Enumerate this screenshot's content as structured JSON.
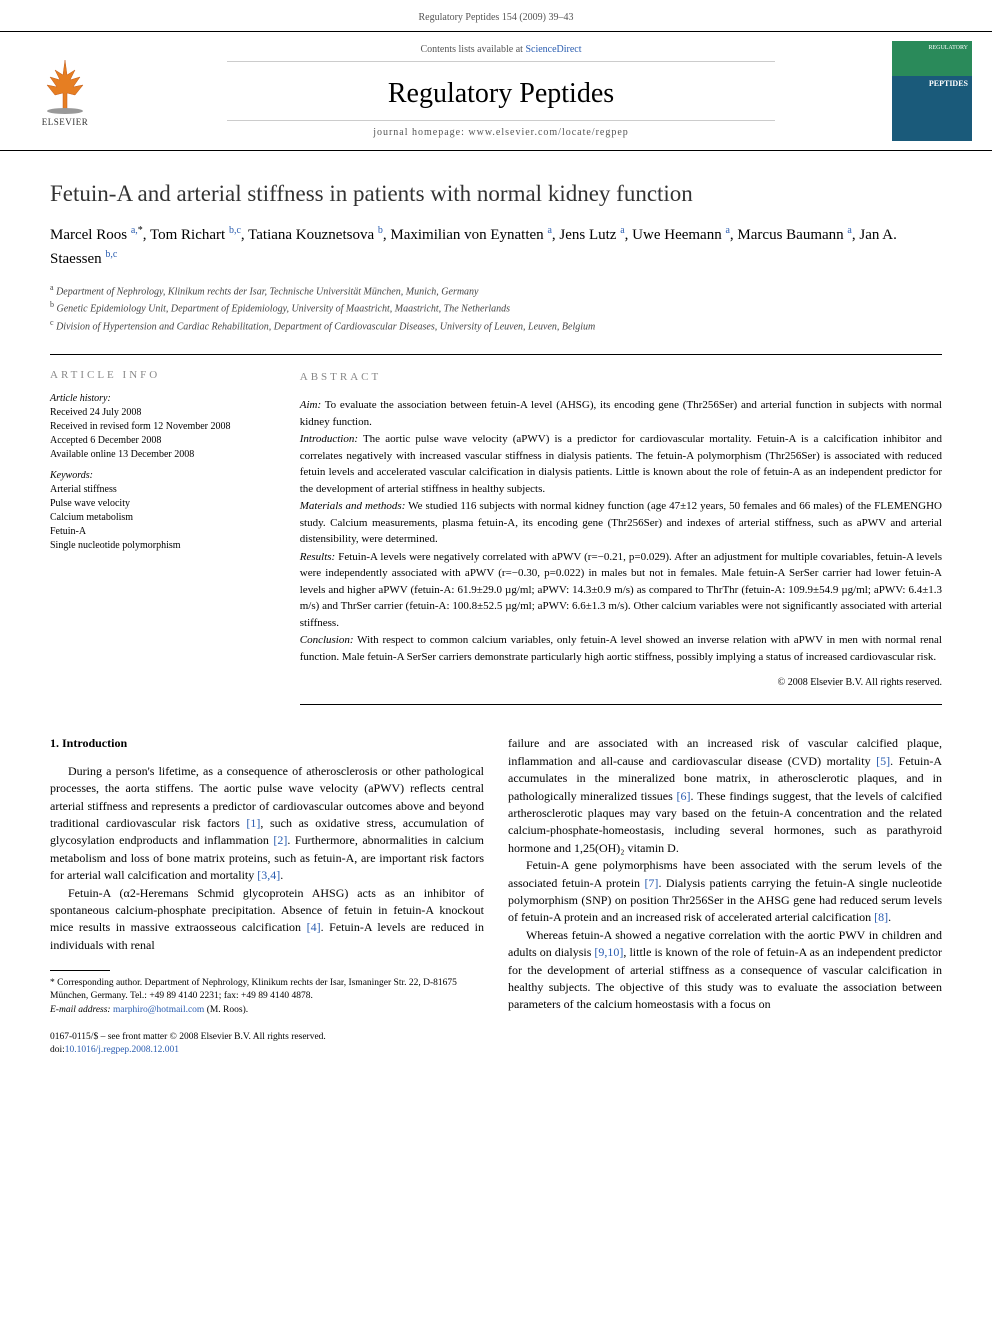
{
  "header": {
    "running": "Regulatory Peptides 154 (2009) 39–43"
  },
  "banner": {
    "contents_prefix": "Contents lists available at ",
    "contents_link": "ScienceDirect",
    "journal_name": "Regulatory Peptides",
    "homepage": "journal homepage: www.elsevier.com/locate/regpep",
    "publisher": "ELSEVIER",
    "cover_label": "REGULATORY",
    "cover_title": "PEPTIDES"
  },
  "article": {
    "title": "Fetuin-A and arterial stiffness in patients with normal kidney function",
    "authors_html": "Marcel Roos <sup class='sup'>a,</sup><sup class='sup star'>*</sup>, Tom Richart <sup class='sup'>b,c</sup>, Tatiana Kouznetsova <sup class='sup'>b</sup>, Maximilian von Eynatten <sup class='sup'>a</sup>, Jens Lutz <sup class='sup'>a</sup>, Uwe Heemann <sup class='sup'>a</sup>, Marcus Baumann <sup class='sup'>a</sup>, Jan A. Staessen <sup class='sup'>b,c</sup>",
    "affiliations": [
      {
        "sup": "a",
        "text": "Department of Nephrology, Klinikum rechts der Isar, Technische Universität München, Munich, Germany"
      },
      {
        "sup": "b",
        "text": "Genetic Epidemiology Unit, Department of Epidemiology, University of Maastricht, Maastricht, The Netherlands"
      },
      {
        "sup": "c",
        "text": "Division of Hypertension and Cardiac Rehabilitation, Department of Cardiovascular Diseases, University of Leuven, Leuven, Belgium"
      }
    ]
  },
  "info": {
    "heading": "article info",
    "history_label": "Article history:",
    "history": [
      "Received 24 July 2008",
      "Received in revised form 12 November 2008",
      "Accepted 6 December 2008",
      "Available online 13 December 2008"
    ],
    "keywords_label": "Keywords:",
    "keywords": [
      "Arterial stiffness",
      "Pulse wave velocity",
      "Calcium metabolism",
      "Fetuin-A",
      "Single nucleotide polymorphism"
    ]
  },
  "abstract": {
    "heading": "abstract",
    "sections": [
      {
        "label": "Aim:",
        "text": " To evaluate the association between fetuin-A level (AHSG), its encoding gene (Thr256Ser) and arterial function in subjects with normal kidney function."
      },
      {
        "label": "Introduction:",
        "text": " The aortic pulse wave velocity (aPWV) is a predictor for cardiovascular mortality. Fetuin-A is a calcification inhibitor and correlates negatively with increased vascular stiffness in dialysis patients. The fetuin-A polymorphism (Thr256Ser) is associated with reduced fetuin levels and accelerated vascular calcification in dialysis patients. Little is known about the role of fetuin-A as an independent predictor for the development of arterial stiffness in healthy subjects."
      },
      {
        "label": "Materials and methods:",
        "text": " We studied 116 subjects with normal kidney function (age 47±12 years, 50 females and 66 males) of the FLEMENGHO study. Calcium measurements, plasma fetuin-A, its encoding gene (Thr256Ser) and indexes of arterial stiffness, such as aPWV and arterial distensibility, were determined."
      },
      {
        "label": "Results:",
        "text": " Fetuin-A levels were negatively correlated with aPWV (r=−0.21, p=0.029). After an adjustment for multiple covariables, fetuin-A levels were independently associated with aPWV (r=−0.30, p=0.022) in males but not in females. Male fetuin-A SerSer carrier had lower fetuin-A levels and higher aPWV (fetuin-A: 61.9±29.0 µg/ml; aPWV: 14.3±0.9 m/s) as compared to ThrThr (fetuin-A: 109.9±54.9 µg/ml; aPWV: 6.4±1.3 m/s) and ThrSer carrier (fetuin-A: 100.8±52.5 µg/ml; aPWV: 6.6±1.3 m/s). Other calcium variables were not significantly associated with arterial stiffness."
      },
      {
        "label": "Conclusion:",
        "text": " With respect to common calcium variables, only fetuin-A level showed an inverse relation with aPWV in men with normal renal function. Male fetuin-A SerSer carriers demonstrate particularly high aortic stiffness, possibly implying a status of increased cardiovascular risk."
      }
    ],
    "copyright": "© 2008 Elsevier B.V. All rights reserved."
  },
  "body": {
    "intro_heading": "1. Introduction",
    "left_paras": [
      "During a person's lifetime, as a consequence of atherosclerosis or other pathological processes, the aorta stiffens. The aortic pulse wave velocity (aPWV) reflects central arterial stiffness and represents a predictor of cardiovascular outcomes above and beyond traditional cardiovascular risk factors <span class='ref-link'>[1]</span>, such as oxidative stress, accumulation of glycosylation endproducts and inflammation <span class='ref-link'>[2]</span>. Furthermore, abnormalities in calcium metabolism and loss of bone matrix proteins, such as fetuin-A, are important risk factors for arterial wall calcification and mortality <span class='ref-link'>[3,4]</span>.",
      "Fetuin-A (α2-Heremans Schmid glycoprotein AHSG) acts as an inhibitor of spontaneous calcium-phosphate precipitation. Absence of fetuin in fetuin-A knockout mice results in massive extraosseous calcification <span class='ref-link'>[4]</span>. Fetuin-A levels are reduced in individuals with renal"
    ],
    "right_paras": [
      "failure and are associated with an increased risk of vascular calcified plaque, inflammation and all-cause and cardiovascular disease (CVD) mortality <span class='ref-link'>[5]</span>. Fetuin-A accumulates in the mineralized bone matrix, in atherosclerotic plaques, and in pathologically mineralized tissues <span class='ref-link'>[6]</span>. These findings suggest, that the levels of calcified artherosclerotic plaques may vary based on the fetuin-A concentration and the related calcium-phosphate-homeostasis, including several hormones, such as parathyroid hormone and 1,25(OH)₂ vitamin D.",
      "Fetuin-A gene polymorphisms have been associated with the serum levels of the associated fetuin-A protein <span class='ref-link'>[7]</span>. Dialysis patients carrying the fetuin-A single nucleotide polymorphism (SNP) on position Thr256Ser in the AHSG gene had reduced serum levels of fetuin-A protein and an increased risk of accelerated arterial calcification <span class='ref-link'>[8]</span>.",
      "Whereas fetuin-A showed a negative correlation with the aortic PWV in children and adults on dialysis <span class='ref-link'>[9,10]</span>, little is known of the role of fetuin-A as an independent predictor for the development of arterial stiffness as a consequence of vascular calcification in healthy subjects. The objective of this study was to evaluate the association between parameters of the calcium homeostasis with a focus on"
    ]
  },
  "footnotes": {
    "corr": "* Corresponding author. Department of Nephrology, Klinikum rechts der Isar, Ismaninger Str. 22, D-81675 München, Germany. Tel.: +49 89 4140 2231; fax: +49 89 4140 4878.",
    "email_label": "E-mail address: ",
    "email": "marphiro@hotmail.com",
    "email_who": " (M. Roos)."
  },
  "bottom": {
    "issn": "0167-0115/$ – see front matter © 2008 Elsevier B.V. All rights reserved.",
    "doi_label": "doi:",
    "doi": "10.1016/j.regpep.2008.12.001"
  },
  "colors": {
    "link": "#2a5db0",
    "muted": "#888",
    "cover_top": "#2a8a5a",
    "cover_bottom": "#1a5a7a"
  }
}
